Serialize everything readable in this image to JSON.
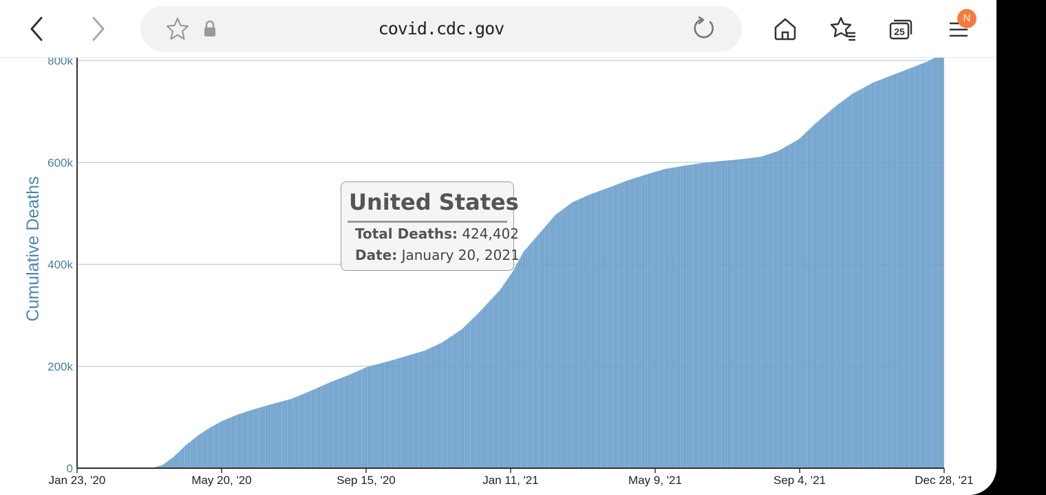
{
  "browser": {
    "url": "covid.cdc.gov",
    "tab_count": "25",
    "profile_badge": "N",
    "icons": [
      "back-icon",
      "forward-icon",
      "star-outline-icon",
      "lock-icon",
      "reload-icon",
      "home-icon",
      "bookmarks-icon",
      "tabs-icon",
      "menu-icon"
    ]
  },
  "chart_data": {
    "type": "bar",
    "title": "",
    "xlabel": "",
    "ylabel": "Cumulative Deaths",
    "ylim": [
      0,
      800000
    ],
    "yticks": [
      {
        "value": 0,
        "label": "0"
      },
      {
        "value": 200000,
        "label": "200k"
      },
      {
        "value": 400000,
        "label": "400k"
      },
      {
        "value": 600000,
        "label": "600k"
      },
      {
        "value": 800000,
        "label": "800k"
      }
    ],
    "xticks": [
      "Jan 23, '20",
      "May 20, '20",
      "Sep 15, '20",
      "Jan 11, '21",
      "May 9, '21",
      "Sep 4, '21",
      "Dec 28, '21"
    ],
    "xlim": [
      "2020-01-23",
      "2021-12-28"
    ],
    "grid": true,
    "color": "#6b9fcb",
    "series": [
      {
        "points": [
          [
            "2020-01-23",
            0
          ],
          [
            "2020-03-15",
            100
          ],
          [
            "2020-03-25",
            1500
          ],
          [
            "2020-04-01",
            6000
          ],
          [
            "2020-04-10",
            22000
          ],
          [
            "2020-04-20",
            45000
          ],
          [
            "2020-05-01",
            66000
          ],
          [
            "2020-05-10",
            80000
          ],
          [
            "2020-05-20",
            93000
          ],
          [
            "2020-06-01",
            105000
          ],
          [
            "2020-06-15",
            116000
          ],
          [
            "2020-07-01",
            127000
          ],
          [
            "2020-07-15",
            136000
          ],
          [
            "2020-08-01",
            153000
          ],
          [
            "2020-08-15",
            168000
          ],
          [
            "2020-09-01",
            184000
          ],
          [
            "2020-09-15",
            199000
          ],
          [
            "2020-10-01",
            209000
          ],
          [
            "2020-10-15",
            219000
          ],
          [
            "2020-11-01",
            231000
          ],
          [
            "2020-11-15",
            247000
          ],
          [
            "2020-12-01",
            273000
          ],
          [
            "2020-12-15",
            306000
          ],
          [
            "2021-01-01",
            350000
          ],
          [
            "2021-01-11",
            385000
          ],
          [
            "2021-01-20",
            424402
          ],
          [
            "2021-02-01",
            458000
          ],
          [
            "2021-02-15",
            497000
          ],
          [
            "2021-03-01",
            522000
          ],
          [
            "2021-03-15",
            537000
          ],
          [
            "2021-04-01",
            552000
          ],
          [
            "2021-04-15",
            565000
          ],
          [
            "2021-05-01",
            577000
          ],
          [
            "2021-05-15",
            587000
          ],
          [
            "2021-06-01",
            594000
          ],
          [
            "2021-06-15",
            599000
          ],
          [
            "2021-07-01",
            603000
          ],
          [
            "2021-07-15",
            606000
          ],
          [
            "2021-08-01",
            611000
          ],
          [
            "2021-08-15",
            622000
          ],
          [
            "2021-09-01",
            645000
          ],
          [
            "2021-09-15",
            677000
          ],
          [
            "2021-10-01",
            710000
          ],
          [
            "2021-10-15",
            735000
          ],
          [
            "2021-11-01",
            757000
          ],
          [
            "2021-11-15",
            770000
          ],
          [
            "2021-12-01",
            785000
          ],
          [
            "2021-12-15",
            798000
          ],
          [
            "2021-12-28",
            815000
          ]
        ]
      }
    ]
  },
  "tooltip": {
    "title": "United States",
    "deaths_label": "Total Deaths:",
    "deaths_value": "424,402",
    "date_label": "Date:",
    "date_value": "January 20, 2021"
  }
}
